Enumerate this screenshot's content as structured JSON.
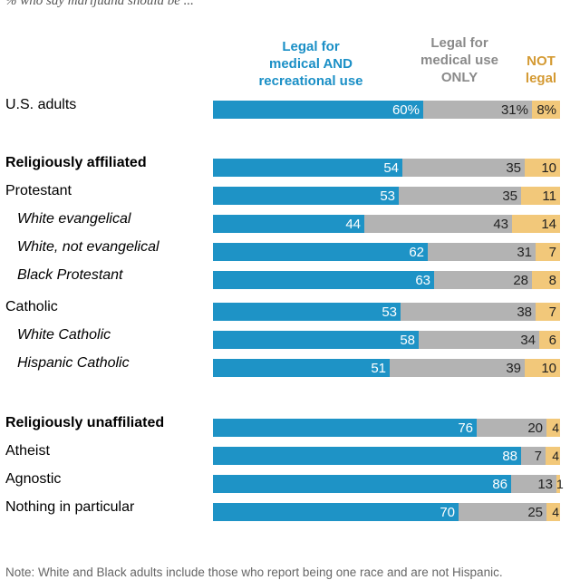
{
  "subtitle": "% who say marijuana should be ...",
  "legend": {
    "legal_medical_recreational": [
      "Legal for",
      "medical AND",
      "recreational use"
    ],
    "legal_medical_only": [
      "Legal for",
      "medical use",
      "ONLY"
    ],
    "not_legal": [
      "NOT",
      "legal"
    ]
  },
  "note": "Note: White and Black adults include those who report being one race and are not Hispanic.",
  "colors": {
    "legal_medical_recreational": "#1e93c6",
    "legal_medical_only": "#b3b3b3",
    "not_legal": "#f2c87a"
  },
  "chart_data": {
    "type": "bar",
    "orientation": "horizontal",
    "stacked": true,
    "xlim": [
      0,
      100
    ],
    "series": [
      {
        "name": "Legal for medical AND recreational use"
      },
      {
        "name": "Legal for medical use ONLY"
      },
      {
        "name": "NOT legal"
      }
    ],
    "rows": [
      {
        "label": "U.S. adults",
        "style": "normal",
        "values": [
          60,
          31,
          8
        ],
        "display": [
          "60%",
          "31%",
          "8%"
        ]
      },
      {
        "label": "Religiously affiliated",
        "style": "bold",
        "values": [
          54,
          35,
          10
        ],
        "display": [
          "54",
          "35",
          "10"
        ]
      },
      {
        "label": "Protestant",
        "style": "normal",
        "values": [
          53,
          35,
          11
        ],
        "display": [
          "53",
          "35",
          "11"
        ]
      },
      {
        "label": "White evangelical",
        "style": "italic",
        "values": [
          44,
          43,
          14
        ],
        "display": [
          "44",
          "43",
          "14"
        ]
      },
      {
        "label": "White, not evangelical",
        "style": "italic",
        "values": [
          62,
          31,
          7
        ],
        "display": [
          "62",
          "31",
          "7"
        ]
      },
      {
        "label": "Black Protestant",
        "style": "italic",
        "values": [
          63,
          28,
          8
        ],
        "display": [
          "63",
          "28",
          "8"
        ]
      },
      {
        "label": "Catholic",
        "style": "normal",
        "values": [
          53,
          38,
          7
        ],
        "display": [
          "53",
          "38",
          "7"
        ]
      },
      {
        "label": "White Catholic",
        "style": "italic",
        "values": [
          58,
          34,
          6
        ],
        "display": [
          "58",
          "34",
          "6"
        ]
      },
      {
        "label": "Hispanic Catholic",
        "style": "italic",
        "values": [
          51,
          39,
          10
        ],
        "display": [
          "51",
          "39",
          "10"
        ]
      },
      {
        "label": "Religiously unaffiliated",
        "style": "bold",
        "values": [
          76,
          20,
          4
        ],
        "display": [
          "76",
          "20",
          "4"
        ]
      },
      {
        "label": "Atheist",
        "style": "normal",
        "values": [
          88,
          7,
          4
        ],
        "display": [
          "88",
          "7",
          "4"
        ]
      },
      {
        "label": "Agnostic",
        "style": "normal",
        "values": [
          86,
          13,
          1
        ],
        "display": [
          "86",
          "13",
          "1"
        ]
      },
      {
        "label": "Nothing in particular",
        "style": "normal",
        "values": [
          70,
          25,
          4
        ],
        "display": [
          "70",
          "25",
          "4"
        ]
      }
    ]
  }
}
